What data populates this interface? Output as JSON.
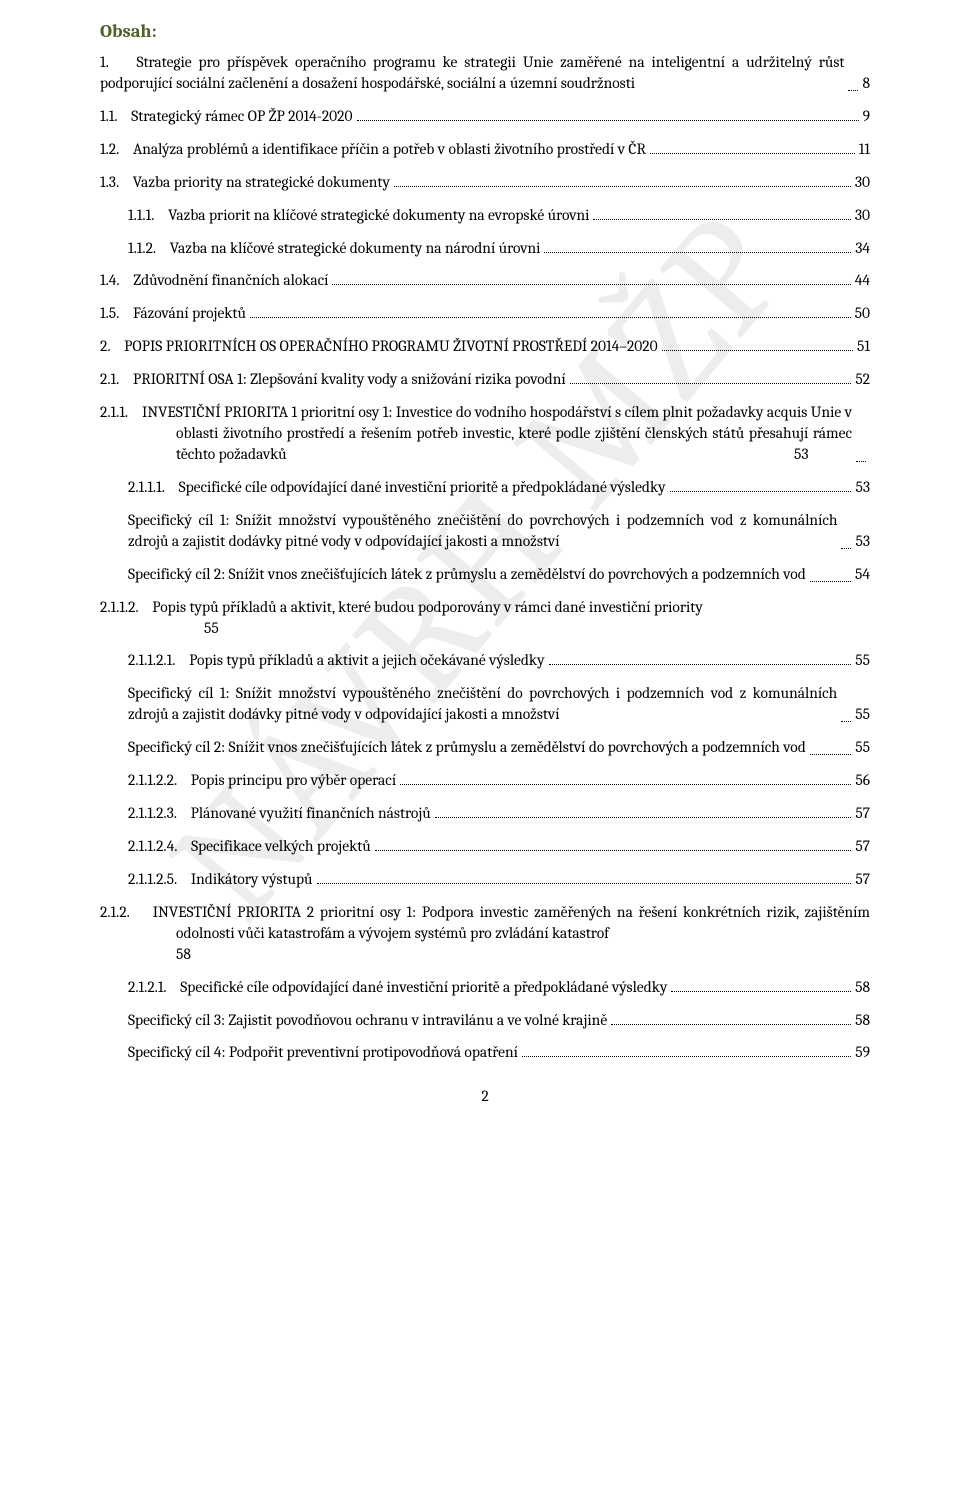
{
  "title": "Obsah:",
  "entries": [
    {
      "type": "para",
      "indentClass": "indent-0",
      "num": "1.",
      "text": "Strategie pro příspěvek operačního programu ke strategii Unie zaměřené na inteligentní a udržitelný růst podporující sociální začlenění a dosažení hospodářské, sociální a územní soudržnosti",
      "page": "8",
      "gap": false
    },
    {
      "type": "row",
      "indentClass": "indent-1",
      "num": "1.1.",
      "text": "Strategický rámec OP ŽP 2014-2020",
      "page": "9",
      "gap": true
    },
    {
      "type": "row",
      "indentClass": "indent-1",
      "num": "1.2.",
      "text": "Analýza problémů a identifikace příčin a potřeb v oblasti životního prostředí v ČR",
      "page": "11",
      "gap": true
    },
    {
      "type": "row",
      "indentClass": "indent-1",
      "num": "1.3.",
      "text": "Vazba priority na strategické dokumenty",
      "page": "30",
      "gap": true
    },
    {
      "type": "row",
      "indentClass": "indent-2",
      "num": "1.1.1.",
      "text": "Vazba priorit na klíčové strategické dokumenty na evropské úrovni",
      "page": "30",
      "gap": true
    },
    {
      "type": "row",
      "indentClass": "indent-2",
      "num": "1.1.2.",
      "text": "Vazba na klíčové strategické dokumenty na národní úrovni",
      "page": "34",
      "gap": true
    },
    {
      "type": "row",
      "indentClass": "indent-1",
      "num": "1.4.",
      "text": "Zdůvodnění finančních alokací",
      "page": "44",
      "gap": true
    },
    {
      "type": "row",
      "indentClass": "indent-1",
      "num": "1.5.",
      "text": "Fázování projektů",
      "page": "50",
      "gap": true
    },
    {
      "type": "row",
      "indentClass": "indent-0",
      "num": "2.",
      "text": "POPIS PRIORITNÍCH OS OPERAČNÍHO PROGRAMU ŽIVOTNÍ PROSTŘEDÍ 2014–2020",
      "page": "51",
      "gap": true
    },
    {
      "type": "row",
      "indentClass": "indent-1",
      "num": "2.1.",
      "text": "PRIORITNÍ OSA 1: Zlepšování kvality vody a snižování rizika povodní",
      "page": "52",
      "gap": true
    },
    {
      "type": "para",
      "indentClass": "indent-2 hang",
      "num": "2.1.1.",
      "text": "INVESTIČNÍ PRIORITA 1 prioritní osy 1: Investice do vodního hospodářství s cílem plnit požadavky acquis Unie v oblasti životního prostředí a řešením potřeb investic, které podle zjištění členských států přesahují rámec těchto požadavků",
      "page": "53",
      "gap": true
    },
    {
      "type": "row",
      "indentClass": "indent-2",
      "num": "2.1.1.1.",
      "text": "Specifické cíle odpovídající dané investiční prioritě a předpokládané výsledky",
      "page": "53",
      "gap": true
    },
    {
      "type": "para",
      "indentClass": "indent-2",
      "num": "",
      "text": "Specifický cíl 1: Snížit množství vypouštěného znečištění do povrchových i podzemních vod z komunálních zdrojů a zajistit dodávky pitné vody v odpovídající jakosti a množství",
      "page": "53",
      "gap": true
    },
    {
      "type": "para",
      "indentClass": "indent-2",
      "num": "",
      "text": "Specifický cíl 2: Snížit vnos znečišťujících látek z průmyslu a zemědělství do povrchových a podzemních vod",
      "page": "54",
      "gap": true
    },
    {
      "type": "para-num-tail",
      "indentClass": "indent-2 hang3",
      "num": "2.1.1.2.",
      "text": "Popis typů příkladů a aktivit, které budou podporovány v rámci dané investiční priority",
      "tail": "55",
      "gap": true
    },
    {
      "type": "row",
      "indentClass": "indent-2",
      "num": "2.1.1.2.1.",
      "text": "Popis typů příkladů a aktivit a jejich očekávané výsledky",
      "page": "55",
      "gap": true
    },
    {
      "type": "para",
      "indentClass": "indent-2",
      "num": "",
      "text": "Specifický cíl 1: Snížit množství vypouštěného znečištění do povrchových i podzemních vod z komunálních zdrojů a zajistit dodávky pitné vody v odpovídající jakosti a množství",
      "page": "55",
      "gap": true
    },
    {
      "type": "para",
      "indentClass": "indent-2",
      "num": "",
      "text": "Specifický cíl 2: Snížit vnos znečišťujících látek z průmyslu a zemědělství do povrchových a podzemních vod",
      "page": "55",
      "gap": true
    },
    {
      "type": "row",
      "indentClass": "indent-2",
      "num": "2.1.1.2.2.",
      "text": "Popis principu pro výběr operací",
      "page": "56",
      "gap": true
    },
    {
      "type": "row",
      "indentClass": "indent-2",
      "num": "2.1.1.2.3.",
      "text": "Plánované využití finančních nástrojů",
      "page": "57",
      "gap": true
    },
    {
      "type": "row",
      "indentClass": "indent-2",
      "num": "2.1.1.2.4.",
      "text": "Specifikace velkých projektů",
      "page": "57",
      "gap": true
    },
    {
      "type": "row",
      "indentClass": "indent-2",
      "num": "2.1.1.2.5.",
      "text": "Indikátory výstupů",
      "page": "57",
      "gap": true
    },
    {
      "type": "para-num-tail",
      "indentClass": "indent-2 hang",
      "num": "2.1.2.",
      "text": "INVESTIČNÍ PRIORITA 2 prioritní osy 1: Podpora investic zaměřených na řešení konkrétních rizik, zajištěním odolnosti vůči katastrofám a vývojem systémů pro zvládání katastrof",
      "tail": "58",
      "gap": true
    },
    {
      "type": "row",
      "indentClass": "indent-2",
      "num": "2.1.2.1.",
      "text": "Specifické cíle odpovídající dané investiční prioritě a předpokládané výsledky",
      "page": "58",
      "gap": true
    },
    {
      "type": "row",
      "indentClass": "indent-2",
      "num": "",
      "text": "Specifický cíl 3: Zajistit povodňovou ochranu v intravilánu a ve volné krajině",
      "page": "58",
      "gap": true
    },
    {
      "type": "row",
      "indentClass": "indent-2",
      "num": "",
      "text": "Specifický cíl 4: Podpořit preventivní protipovodňová opatření",
      "page": "59",
      "gap": true
    }
  ],
  "footer": "2",
  "watermark": "NÁVRH MŽP"
}
